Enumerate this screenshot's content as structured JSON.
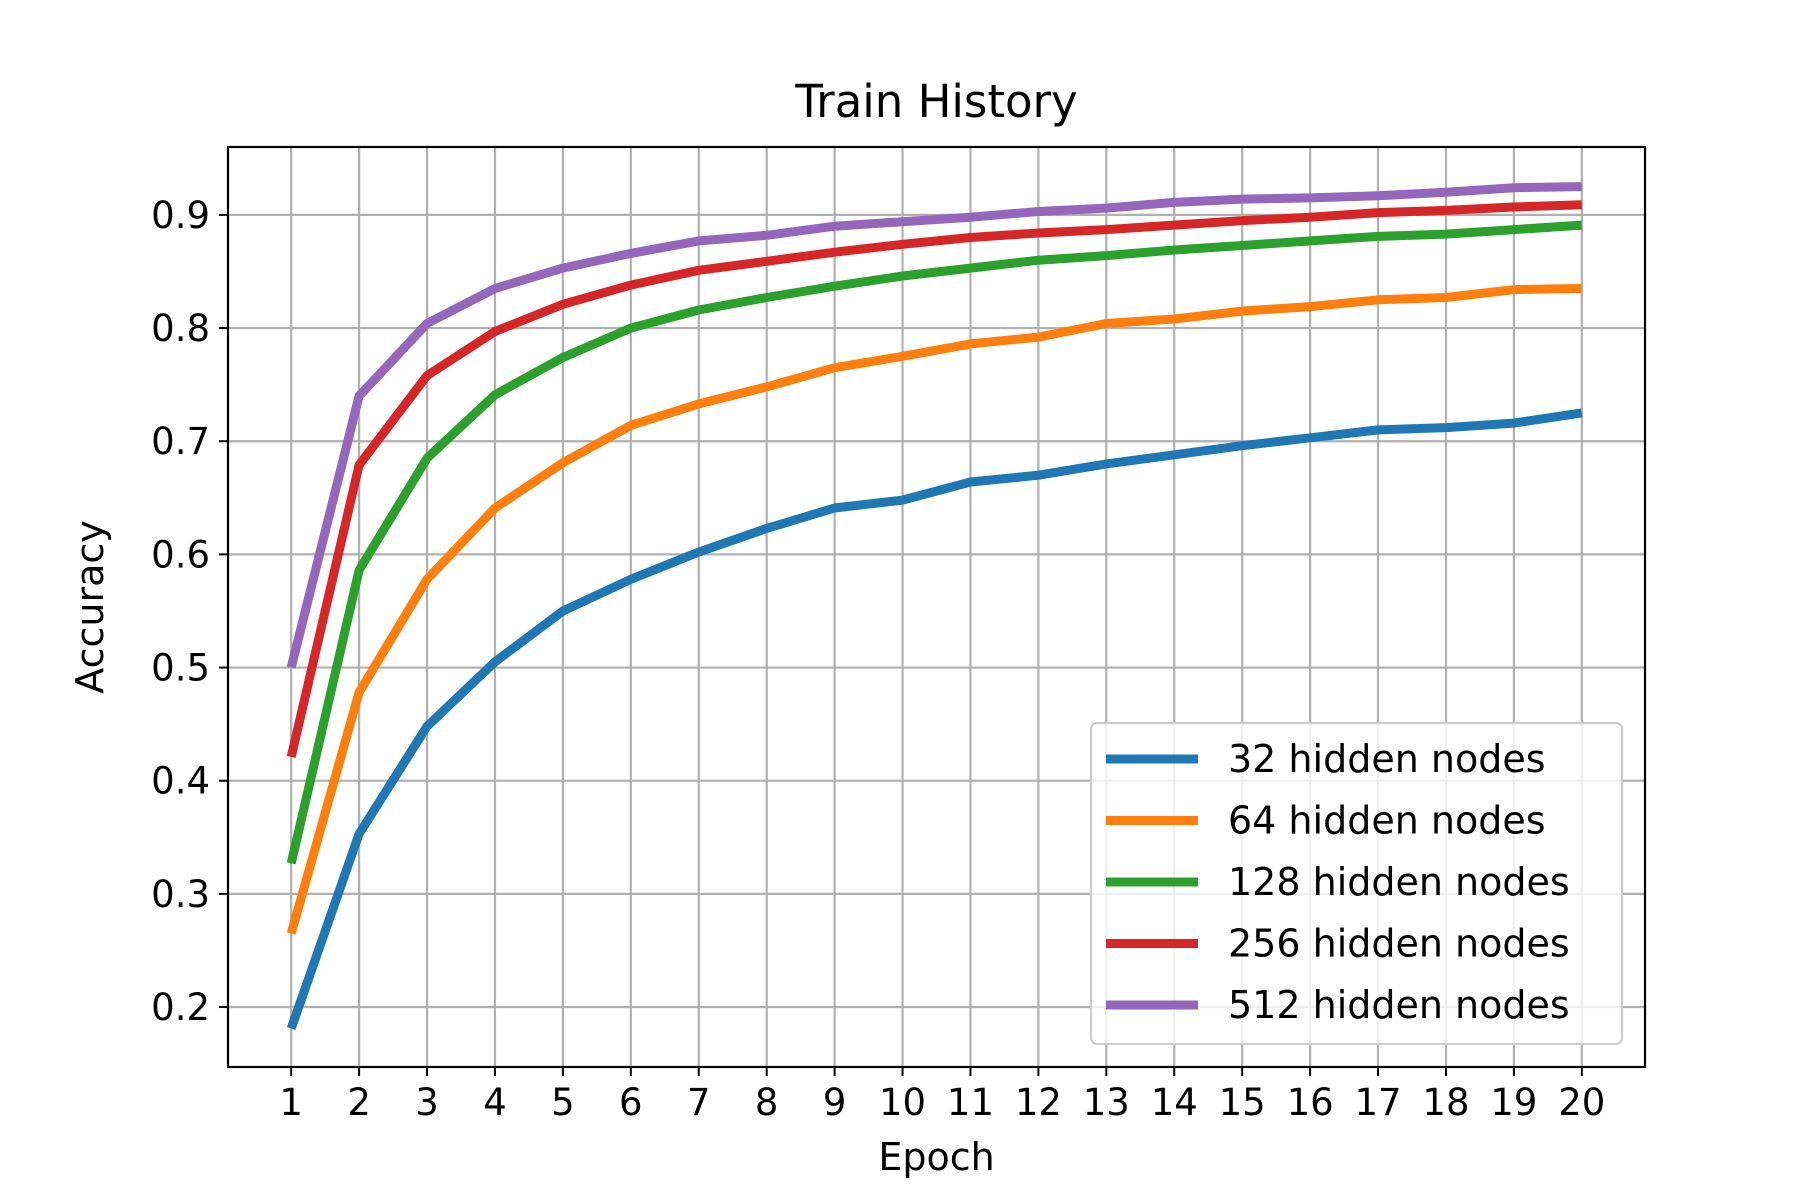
{
  "chart_data": {
    "type": "line",
    "title": "Train History",
    "xlabel": "Epoch",
    "ylabel": "Accuracy",
    "x": [
      1,
      2,
      3,
      4,
      5,
      6,
      7,
      8,
      9,
      10,
      11,
      12,
      13,
      14,
      15,
      16,
      17,
      18,
      19,
      20
    ],
    "xlim": [
      0.07,
      20.93
    ],
    "ylim": [
      0.147,
      0.96
    ],
    "yticks": [
      0.2,
      0.3,
      0.4,
      0.5,
      0.6,
      0.7,
      0.8,
      0.9
    ],
    "ytick_labels": [
      "0.2",
      "0.3",
      "0.4",
      "0.5",
      "0.6",
      "0.7",
      "0.8",
      "0.9"
    ],
    "xtick_labels": [
      "1",
      "2",
      "3",
      "4",
      "5",
      "6",
      "7",
      "8",
      "9",
      "10",
      "11",
      "12",
      "13",
      "14",
      "15",
      "16",
      "17",
      "18",
      "19",
      "20"
    ],
    "grid": true,
    "legend_position": "lower-right",
    "series": [
      {
        "name": "32 hidden nodes",
        "color": "#1f77b4",
        "values": [
          0.181,
          0.353,
          0.448,
          0.505,
          0.55,
          0.578,
          0.602,
          0.623,
          0.641,
          0.648,
          0.664,
          0.67,
          0.68,
          0.688,
          0.696,
          0.703,
          0.71,
          0.712,
          0.716,
          0.725
        ]
      },
      {
        "name": "64 hidden nodes",
        "color": "#ff7f0e",
        "values": [
          0.265,
          0.478,
          0.578,
          0.641,
          0.681,
          0.714,
          0.733,
          0.748,
          0.765,
          0.775,
          0.786,
          0.792,
          0.804,
          0.808,
          0.815,
          0.819,
          0.825,
          0.827,
          0.834,
          0.835
        ]
      },
      {
        "name": "128 hidden nodes",
        "color": "#2ca02c",
        "values": [
          0.327,
          0.586,
          0.685,
          0.741,
          0.774,
          0.8,
          0.816,
          0.827,
          0.837,
          0.846,
          0.853,
          0.86,
          0.864,
          0.869,
          0.873,
          0.877,
          0.881,
          0.883,
          0.887,
          0.891
        ]
      },
      {
        "name": "256 hidden nodes",
        "color": "#d62728",
        "values": [
          0.421,
          0.679,
          0.758,
          0.797,
          0.821,
          0.838,
          0.851,
          0.859,
          0.867,
          0.874,
          0.88,
          0.884,
          0.887,
          0.891,
          0.895,
          0.898,
          0.902,
          0.904,
          0.907,
          0.909
        ]
      },
      {
        "name": "512 hidden nodes",
        "color": "#9467bd",
        "values": [
          0.5,
          0.74,
          0.804,
          0.835,
          0.853,
          0.866,
          0.877,
          0.882,
          0.89,
          0.894,
          0.898,
          0.903,
          0.906,
          0.911,
          0.914,
          0.915,
          0.917,
          0.92,
          0.924,
          0.925
        ]
      }
    ]
  }
}
